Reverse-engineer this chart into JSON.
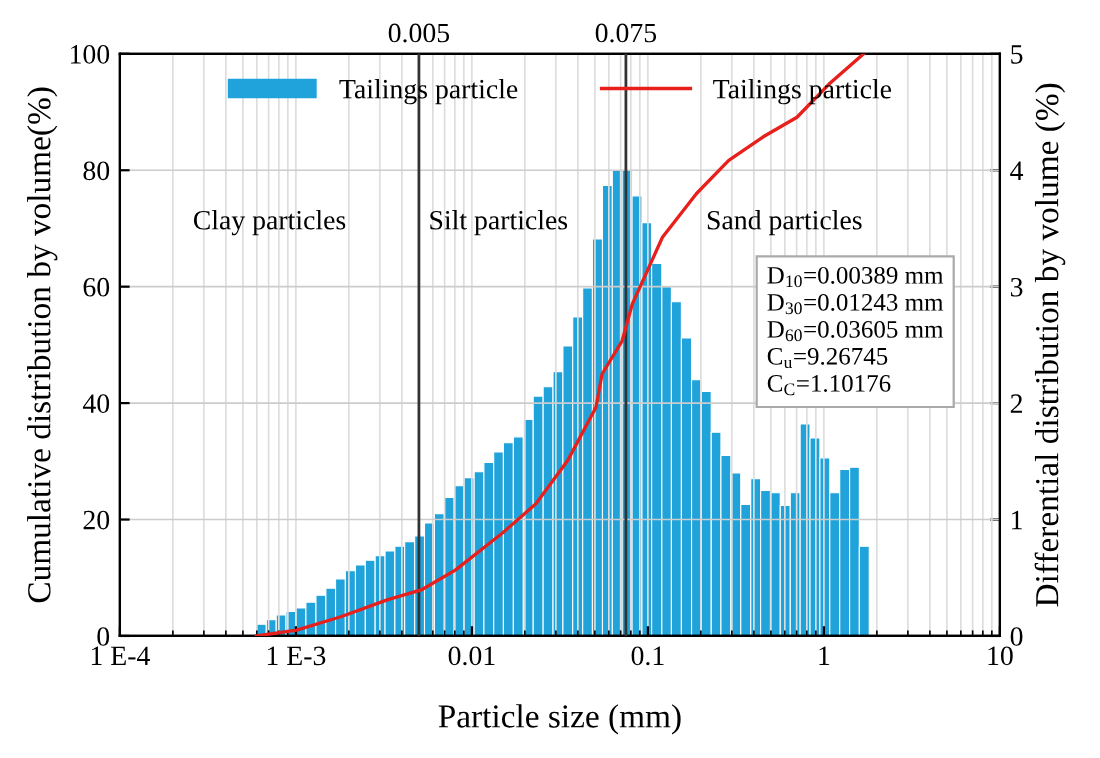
{
  "chart_data": {
    "type": "histogram",
    "xlabel": "Particle size (mm)",
    "ylabel": "Cumulative distribution by volume(%)",
    "y2label": "Differential distribution by volume (%)",
    "log": "x",
    "xlim": [
      0.0001,
      10
    ],
    "xticks": [
      {
        "value": 0.0001,
        "label": "1 E-4"
      },
      {
        "value": 0.001,
        "label": "1 E-3"
      },
      0.01,
      0.1,
      1,
      10
    ],
    "ylim": [
      0,
      100
    ],
    "yticks": [
      0,
      20,
      40,
      60,
      80,
      100
    ],
    "y2lim": [
      0,
      5
    ],
    "y2ticks": [
      0,
      1,
      2,
      3,
      4,
      5
    ],
    "bins": [
      0.000597,
      0.000679,
      0.000773,
      0.000879,
      0.001,
      0.00114,
      0.0013,
      0.00148,
      0.00168,
      0.00191,
      0.00218,
      0.00248,
      0.00282,
      0.00321,
      0.00365,
      0.00415,
      0.00473,
      0.00538,
      0.00612,
      0.00697,
      0.00793,
      0.00902,
      0.0103,
      0.0117,
      0.0133,
      0.0151,
      0.0172,
      0.0196,
      0.0223,
      0.0254,
      0.0289,
      0.0329,
      0.0374,
      0.0426,
      0.0484,
      0.0552,
      0.0628,
      0.0714,
      0.0813,
      0.0925,
      0.105,
      0.12,
      0.136,
      0.155,
      0.177,
      0.201,
      0.229,
      0.26,
      0.296,
      0.337,
      0.384,
      0.437,
      0.497,
      0.565,
      0.644,
      0.733,
      0.834,
      0.949,
      1.08,
      1.23,
      1.4,
      1.59,
      1.81
    ],
    "series": [
      {
        "axis": "y2",
        "name": "Tailings particle",
        "color": "#1fa3da",
        "values": [
          0.1,
          0.14,
          0.18,
          0.21,
          0.24,
          0.29,
          0.35,
          0.41,
          0.49,
          0.56,
          0.61,
          0.65,
          0.69,
          0.73,
          0.77,
          0.81,
          0.86,
          0.97,
          1.05,
          1.19,
          1.29,
          1.36,
          1.41,
          1.49,
          1.58,
          1.66,
          1.71,
          1.86,
          2.06,
          2.14,
          2.27,
          2.49,
          2.74,
          2.99,
          3.41,
          3.87,
          4.0,
          4.0,
          3.78,
          3.55,
          3.2,
          3.0,
          2.87,
          2.56,
          2.2,
          2.1,
          1.75,
          1.55,
          1.4,
          1.13,
          1.35,
          1.25,
          1.23,
          1.12,
          1.23,
          1.82,
          1.7,
          1.53,
          1.23,
          1.43,
          1.45,
          0.77
        ]
      },
      {
        "type": "line",
        "name": "Tailings particle",
        "color": "#e8201c",
        "x": [
          0.000597,
          0.00101,
          0.0018,
          0.0033,
          0.00515,
          0.00805,
          0.0148,
          0.0231,
          0.0351,
          0.0507,
          0.0549,
          0.0714,
          0.0815,
          0.121,
          0.189,
          0.288,
          0.45,
          0.703,
          1.07,
          1.68
        ],
        "values": [
          0,
          1,
          3.3,
          6.2,
          7.9,
          11.3,
          17.6,
          22.7,
          30.2,
          39.3,
          45,
          50.7,
          57,
          68.5,
          76,
          81.7,
          85.7,
          89.1,
          94.8,
          100
        ]
      }
    ],
    "ref_lines": [
      {
        "axis": "x",
        "value": 0.005,
        "label": "0.005",
        "color": "#333333"
      },
      {
        "axis": "x",
        "value": 0.075,
        "label": "0.075",
        "color": "#333333"
      }
    ],
    "annotations": [
      "Clay particles",
      "Silt particles",
      "Sand particles",
      "D$_{10}$=0.00389 mm",
      "D$_{30}$=0.01243 mm",
      "D$_{60}$=0.03605 mm",
      "C$_{u}$=9.26745",
      "C$_{C}$=1.10176"
    ],
    "grid": true,
    "legend": "top",
    "marker": "none",
    "line_style": "solid"
  }
}
